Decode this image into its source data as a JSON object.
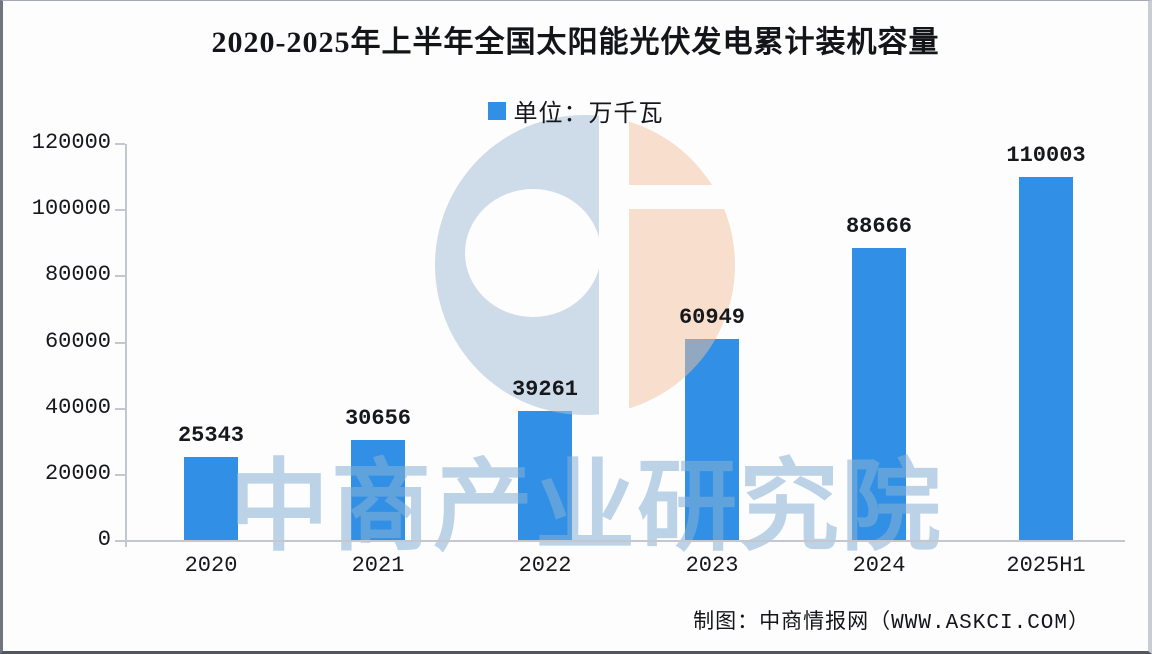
{
  "chart_data": {
    "type": "bar",
    "title": "2020-2025年上半年全国太阳能光伏发电累计装机容量",
    "legend_label": "单位：万千瓦",
    "unit": "万千瓦",
    "categories": [
      "2020",
      "2021",
      "2022",
      "2023",
      "2024",
      "2025H1"
    ],
    "values": [
      25343,
      30656,
      39261,
      60949,
      88666,
      110003
    ],
    "ylim": [
      0,
      120000
    ],
    "y_ticks": [
      0,
      20000,
      40000,
      60000,
      80000,
      100000,
      120000
    ],
    "bar_color": "#3190e5",
    "axis_color": "#c3c7d0",
    "label_color": "#17181c",
    "grid": false,
    "legend_position": "top-center"
  },
  "watermark": {
    "text": "中商产业研究院",
    "logo_name": "askci-circle-logo",
    "logo_blue": "#a8c1d7",
    "logo_peach": "#f2bf9b",
    "text_color": "#87b1d5"
  },
  "footer": {
    "credit": "制图：中商情报网（WWW.ASKCI.COM）"
  }
}
